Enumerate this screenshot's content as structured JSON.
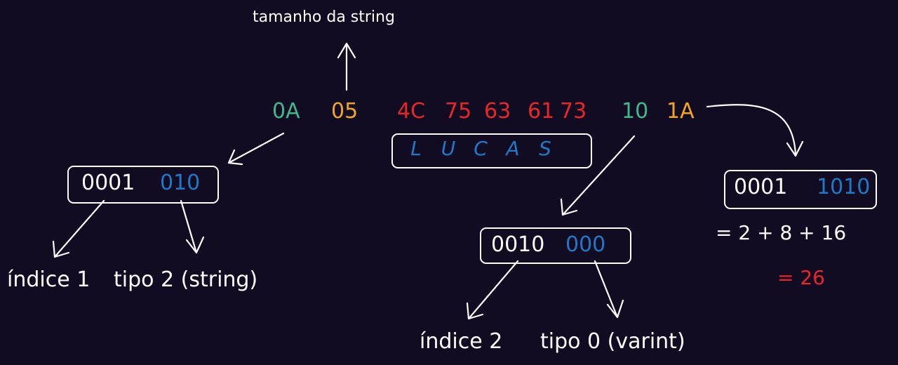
{
  "header_label": "tamanho da string",
  "bytes": {
    "field1_key": "0A",
    "field1_length": "05",
    "string_bytes": [
      "4C",
      "75",
      "63",
      "61",
      "73"
    ],
    "field2_key": "10",
    "field2_value": "1A"
  },
  "decoded_string": [
    "L",
    "U",
    "C",
    "A",
    "S"
  ],
  "key1": {
    "index_bits": "0001",
    "type_bits": "010",
    "index_label": "índice 1",
    "type_label": "tipo 2 (string)"
  },
  "key2": {
    "index_bits": "0010",
    "type_bits": "000",
    "index_label": "índice 2",
    "type_label": "tipo 0 (varint)"
  },
  "varint": {
    "high_bits": "0001",
    "low_bits": "1010",
    "sum": "= 2 + 8 + 16",
    "result": "= 26"
  },
  "colors": {
    "background": "#120c22",
    "green": "#3fb98a",
    "orange": "#f0a526",
    "red": "#e8262a",
    "blue": "#1f78c8",
    "white": "#ffffff"
  }
}
